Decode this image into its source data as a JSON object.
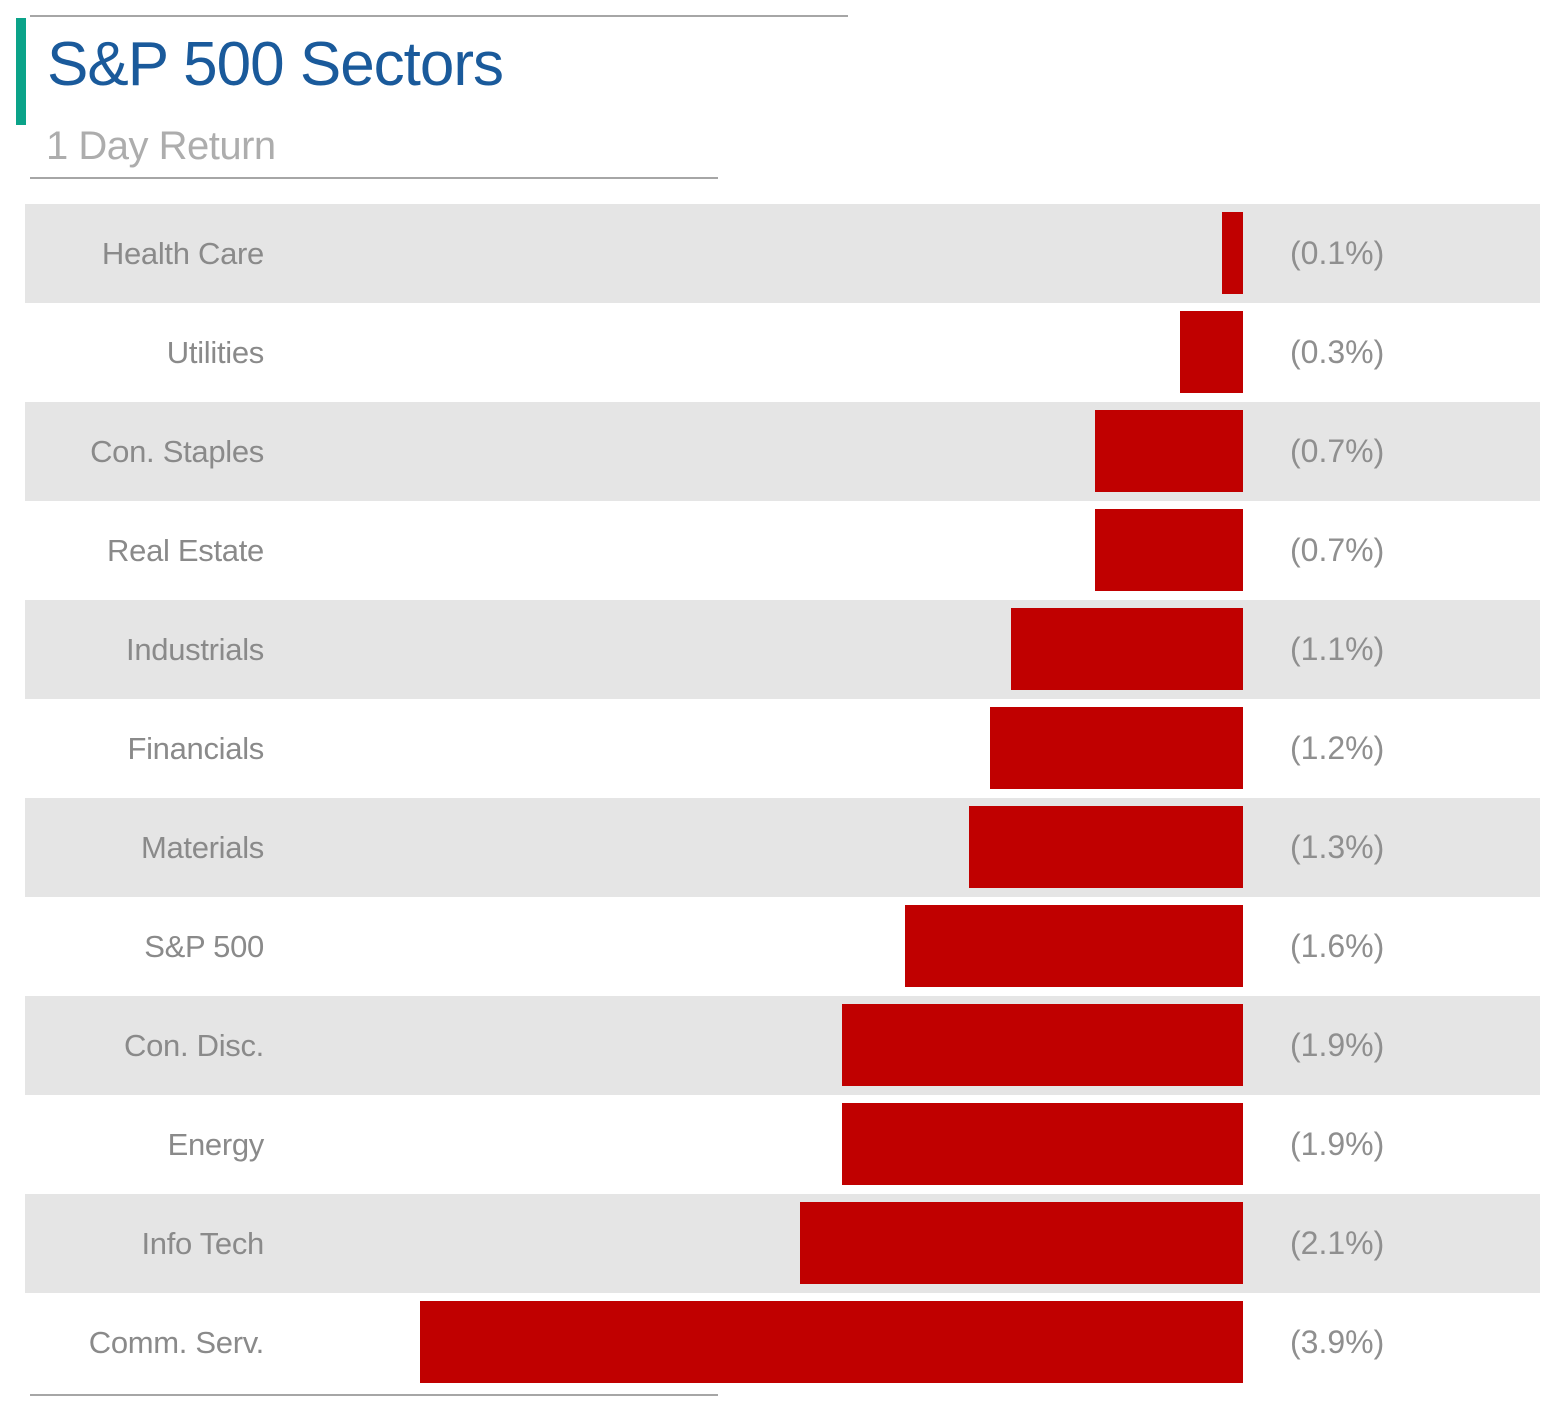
{
  "header": {
    "title": "S&P 500 Sectors",
    "subtitle": "1 Day Return"
  },
  "colors": {
    "accent_teal": "#0ba389",
    "title_blue": "#1a5a9b",
    "bar_red": "#c00000",
    "row_band_gray": "#e5e5e5",
    "label_gray": "#8a8a8a",
    "subtitle_gray": "#adadad",
    "rule_gray": "#a6a6a6"
  },
  "chart_data": {
    "type": "bar",
    "orientation": "horizontal",
    "title": "S&P 500 Sectors",
    "subtitle": "1 Day Return",
    "bars_anchored": "right",
    "row_banding": true,
    "legend": "none",
    "max_abs_value": 3.9,
    "categories": [
      "Health Care",
      "Utilities",
      "Con. Staples",
      "Real Estate",
      "Industrials",
      "Financials",
      "Materials",
      "S&P 500",
      "Con. Disc.",
      "Energy",
      "Info Tech",
      "Comm. Serv."
    ],
    "values": [
      -0.1,
      -0.3,
      -0.7,
      -0.7,
      -1.1,
      -1.2,
      -1.3,
      -1.6,
      -1.9,
      -1.9,
      -2.1,
      -3.9
    ],
    "value_labels": [
      "(0.1%)",
      "(0.3%)",
      "(0.7%)",
      "(0.7%)",
      "(1.1%)",
      "(1.2%)",
      "(1.3%)",
      "(1.6%)",
      "(1.9%)",
      "(1.9%)",
      "(2.1%)",
      "(3.9%)"
    ]
  }
}
